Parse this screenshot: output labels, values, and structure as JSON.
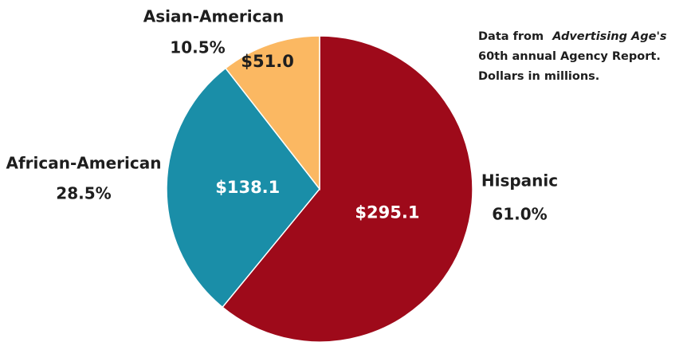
{
  "chart_data": {
    "type": "pie",
    "categories": [
      "Hispanic",
      "African-American",
      "Asian-American"
    ],
    "values": [
      295.1,
      138.1,
      51.0
    ],
    "value_labels": [
      "$295.1",
      "$138.1",
      "$51.0"
    ],
    "percents": [
      61.0,
      28.5,
      10.5
    ],
    "percent_labels": [
      "61.0%",
      "28.5%",
      "10.5%"
    ],
    "colors": [
      "#9e0a1a",
      "#1a8ea8",
      "#fbb862"
    ],
    "note": [
      "Data from",
      "Advertising Age's",
      "60th annual Agency Report.",
      "Dollars in millions."
    ]
  }
}
